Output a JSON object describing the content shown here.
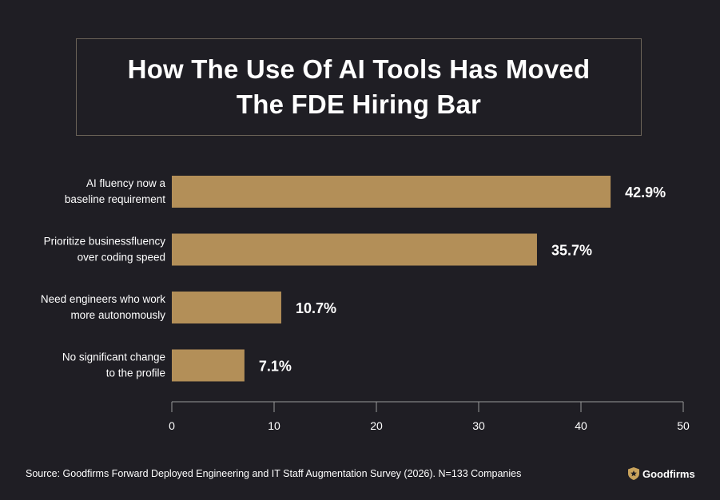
{
  "header": {
    "title": "How The Use Of AI Tools Has Moved The FDE Hiring Bar"
  },
  "chart_data": {
    "type": "bar",
    "orientation": "horizontal",
    "categories": [
      [
        "AI fluency now a",
        "baseline requirement"
      ],
      [
        "Prioritize businessfluency",
        "over coding speed"
      ],
      [
        "Need engineers who work",
        "more autonomously"
      ],
      [
        "No significant change",
        "to the profile"
      ]
    ],
    "values": [
      42.9,
      35.7,
      10.7,
      7.1
    ],
    "data_labels": [
      "42.9%",
      "35.7%",
      "10.7%",
      "7.1%"
    ],
    "xlim": [
      0,
      50
    ],
    "xticks": [
      0,
      10,
      20,
      30,
      40,
      50
    ],
    "grid": false,
    "bar_color": "#b38f58"
  },
  "footer": {
    "source": "Source: Goodfirms Forward Deployed Engineering and IT Staff Augmentation Survey (2026). N=133 Companies",
    "brand": "Goodfirms",
    "brand_icon": "shield-star-icon",
    "brand_color": "#c9a35c"
  }
}
